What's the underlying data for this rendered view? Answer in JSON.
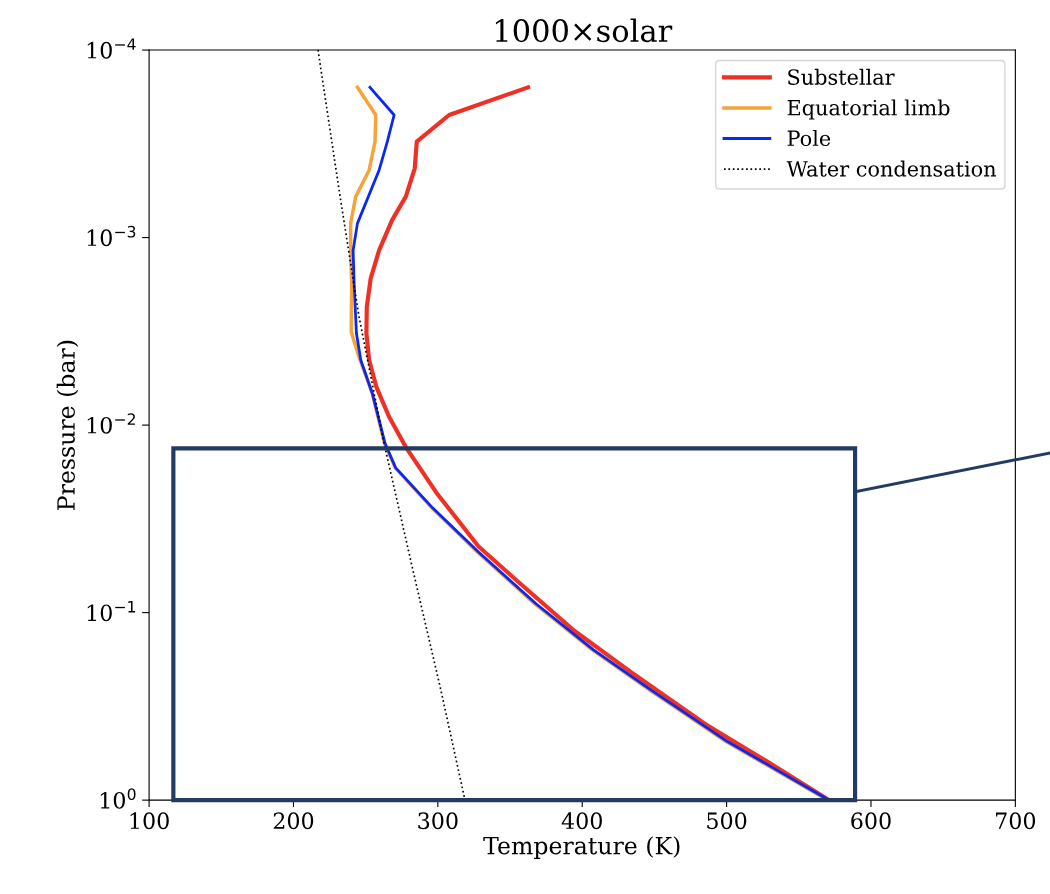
{
  "chart_data": {
    "type": "line",
    "title": "1000×solar",
    "xlabel": "Temperature (K)",
    "ylabel": "Pressure (bar)",
    "log": "y",
    "xlim": [
      100,
      700
    ],
    "xticks": [
      100,
      200,
      300,
      400,
      500,
      600,
      700
    ],
    "ylim": [
      1,
      0.0001
    ],
    "yticks": [
      {
        "value": 0.0001,
        "label": "10$^{−4}$"
      },
      {
        "value": 0.001,
        "label": "10$^{−3}$"
      },
      {
        "value": 0.01,
        "label": "10$^{−2}$"
      },
      {
        "value": 0.1,
        "label": "10$^{−1}$"
      },
      {
        "value": 1,
        "label": "10$^{0}$"
      }
    ],
    "legend": "top right",
    "grid": false,
    "series": [
      {
        "name": "Substellar",
        "color": "#ee3124",
        "line_style": "solid",
        "x": [
          362.5,
          307.8,
          285.4,
          284,
          277.8,
          268.3,
          259.3,
          253.5,
          250.8,
          250.5,
          252.4,
          257.4,
          266.2,
          277.8,
          299.1,
          328.2,
          354.8,
          394.5,
          434.3,
          487.4,
          527.3,
          571
        ],
        "values": [
          0.000158,
          0.000222,
          0.000308,
          0.000427,
          0.000605,
          0.000807,
          0.00117,
          0.00165,
          0.00234,
          0.00324,
          0.0045,
          0.00625,
          0.00903,
          0.0131,
          0.023,
          0.0444,
          0.0676,
          0.125,
          0.209,
          0.403,
          0.617,
          1
        ]
      },
      {
        "name": "Equatorial limb",
        "color": "#f5a33a",
        "line_style": "solid",
        "x": [
          244.3,
          257,
          256.5,
          252.4,
          243.1,
          239.6,
          239.6,
          240.3,
          240,
          245.4,
          254.6,
          263,
          270.5,
          296,
          327.5,
          367,
          407,
          446.5,
          499.5,
          570
        ],
        "values": [
          0.000158,
          0.000222,
          0.000308,
          0.000437,
          0.000605,
          0.00084,
          0.00117,
          0.00175,
          0.00318,
          0.00433,
          0.00678,
          0.0125,
          0.0169,
          0.0277,
          0.0476,
          0.0897,
          0.158,
          0.258,
          0.487,
          1
        ]
      },
      {
        "name": "Pole",
        "color": "#0a28f5",
        "line_style": "solid",
        "x": [
          253,
          269.7,
          265,
          259.3,
          244.3,
          241.3,
          242,
          243.6,
          246.6,
          254.6,
          259.3,
          263.4,
          270.8,
          296.5,
          328.3,
          368,
          407.8,
          447.5,
          500.6,
          570.8
        ],
        "values": [
          0.000158,
          0.000222,
          0.000308,
          0.000437,
          0.00084,
          0.00117,
          0.00175,
          0.00324,
          0.0045,
          0.00678,
          0.0094,
          0.0125,
          0.0169,
          0.0277,
          0.0476,
          0.0897,
          0.158,
          0.258,
          0.487,
          1
        ]
      },
      {
        "name": "Water condensation",
        "color": "#000000",
        "line_style": "dotted",
        "x": [
          217,
          231.6,
          245.4,
          262.7,
          283.2,
          301.8,
          318.8
        ],
        "values": [
          0.0001,
          0.000558,
          0.00264,
          0.0125,
          0.0615,
          0.253,
          1
        ]
      }
    ]
  }
}
